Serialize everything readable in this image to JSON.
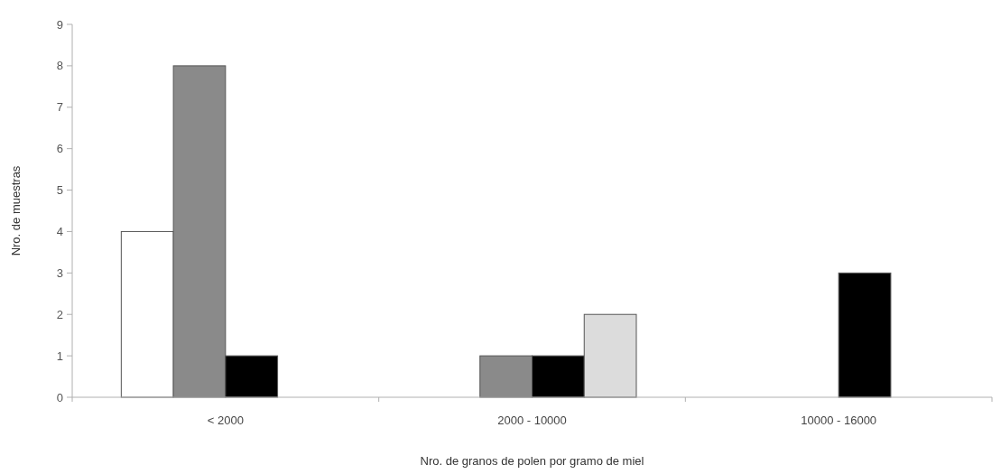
{
  "chart_data": {
    "type": "bar",
    "xlabel": "Nro. de granos de polen por gramo de miel",
    "ylabel": "Nro. de muestras",
    "categories": [
      "< 2000",
      "2000 - 10000",
      "10000 - 16000"
    ],
    "series": [
      {
        "color": "#ffffff",
        "values": [
          4,
          0,
          0
        ]
      },
      {
        "color": "#8a8a8a",
        "values": [
          8,
          1,
          0
        ]
      },
      {
        "color": "#000000",
        "values": [
          1,
          1,
          3
        ]
      },
      {
        "color": "#dcdcdc",
        "values": [
          0,
          2,
          0
        ]
      }
    ],
    "ylim": [
      0,
      9
    ],
    "yticks": [
      0,
      1,
      2,
      3,
      4,
      5,
      6,
      7,
      8,
      9
    ],
    "grid": false
  }
}
